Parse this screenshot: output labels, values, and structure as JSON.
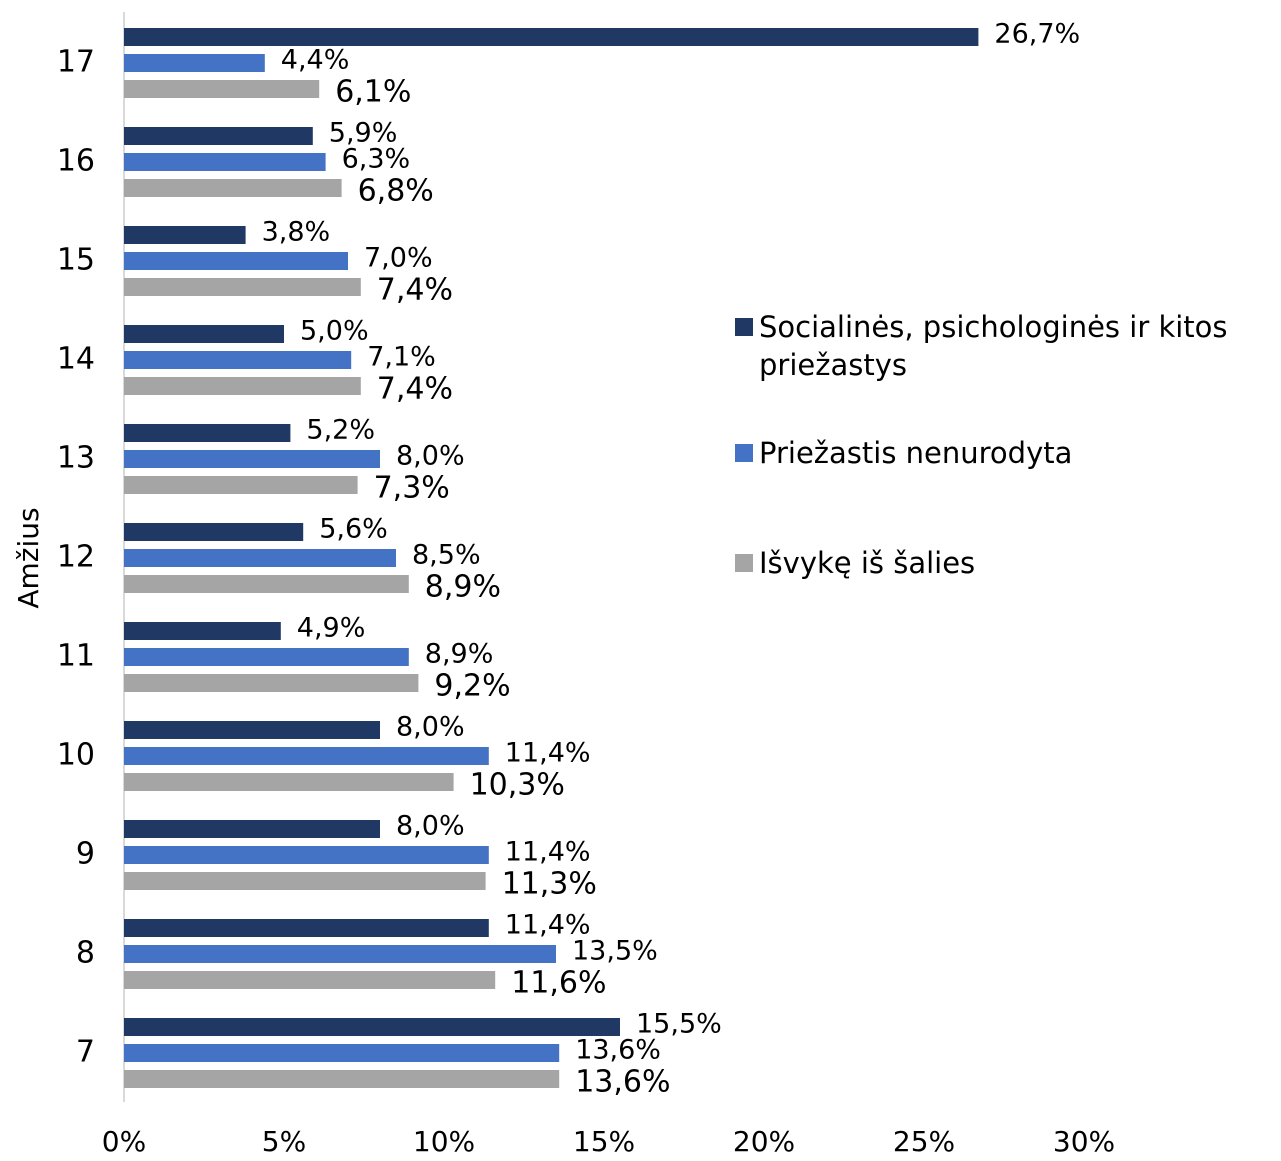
{
  "chart_data": {
    "type": "hbar",
    "ylabel": "Amžius",
    "categories": [
      "17",
      "16",
      "15",
      "14",
      "13",
      "12",
      "11",
      "10",
      "9",
      "8",
      "7"
    ],
    "series": [
      {
        "name": "Socialinės, psichologinės ir kitos priežastys",
        "color": "#1f3864",
        "values": [
          26.7,
          5.9,
          3.8,
          5.0,
          5.2,
          5.6,
          4.9,
          8.0,
          8.0,
          11.4,
          15.5
        ],
        "value_labels": [
          "26,7%",
          "5,9%",
          "3,8%",
          "5,0%",
          "5,2%",
          "5,6%",
          "4,9%",
          "8,0%",
          "8,0%",
          "11,4%",
          "15,5%"
        ]
      },
      {
        "name": "Priežastis nenurodyta",
        "color": "#4472c4",
        "values": [
          4.4,
          6.3,
          7.0,
          7.1,
          8.0,
          8.5,
          8.9,
          11.4,
          11.4,
          13.5,
          13.6
        ],
        "value_labels": [
          "4,4%",
          "6,3%",
          "7,0%",
          "7,1%",
          "8,0%",
          "8,5%",
          "8,9%",
          "11,4%",
          "11,4%",
          "13,5%",
          "13,6%"
        ]
      },
      {
        "name": "Išvykę iš šalies",
        "color": "#a5a5a5",
        "values": [
          6.1,
          6.8,
          7.4,
          7.4,
          7.3,
          8.9,
          9.2,
          10.3,
          11.3,
          11.6,
          13.6
        ],
        "value_labels": [
          "6,1%",
          "6,8%",
          "7,4%",
          "7,4%",
          "7,3%",
          "8,9%",
          "9,2%",
          "10,3%",
          "11,3%",
          "11,6%",
          "13,6%"
        ]
      }
    ],
    "xlim": [
      0,
      30
    ],
    "xticks": [
      {
        "value": 0,
        "label": "0%"
      },
      {
        "value": 5,
        "label": "5%"
      },
      {
        "value": 10,
        "label": "10%"
      },
      {
        "value": 15,
        "label": "15%"
      },
      {
        "value": 20,
        "label": "20%"
      },
      {
        "value": 25,
        "label": "25%"
      },
      {
        "value": 30,
        "label": "30%"
      }
    ],
    "legend": "right"
  }
}
